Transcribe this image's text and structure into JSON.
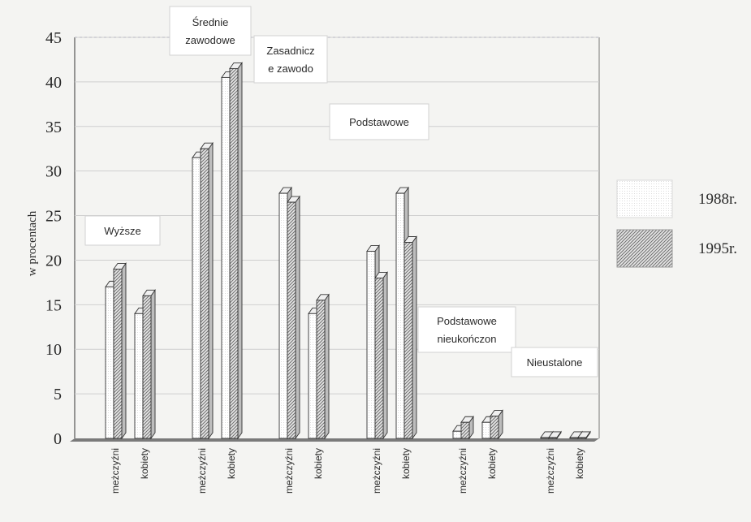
{
  "chart_data": {
    "type": "bar",
    "ylabel": "w procentach",
    "ylim": [
      0,
      45
    ],
    "yticks": [
      0,
      5,
      10,
      15,
      20,
      25,
      30,
      35,
      40,
      45
    ],
    "grid": true,
    "legend_position": "right",
    "groups": [
      {
        "label": "Wyższe"
      },
      {
        "label": "Średnie\nzawodowe"
      },
      {
        "label": "Zasadnicz\ne zawodo"
      },
      {
        "label": "Podstawowe"
      },
      {
        "label": "Podstawowe\nnieukończon"
      },
      {
        "label": "Nieustalone"
      }
    ],
    "subcategories": [
      "meżczyźni",
      "kobiety"
    ],
    "series": [
      {
        "name": "1988r.",
        "values": [
          [
            17,
            14
          ],
          [
            31.5,
            40.5
          ],
          [
            27.5,
            14
          ],
          [
            21,
            27.5
          ],
          [
            0.8,
            1.8
          ],
          [
            0.1,
            0.1
          ]
        ]
      },
      {
        "name": "1995r.",
        "values": [
          [
            19,
            16
          ],
          [
            32.5,
            41.5
          ],
          [
            26.5,
            15.5
          ],
          [
            18,
            22
          ],
          [
            1.8,
            2.5
          ],
          [
            0.1,
            0.1
          ]
        ]
      }
    ],
    "colors": {
      "series_1988_face": "#ffffff",
      "series_1995_hatch": "#7a7a7a",
      "bar_side": "#b8b8b8",
      "grid": "#cfcfcf",
      "frame_dashed": "#8a8ab8"
    }
  }
}
